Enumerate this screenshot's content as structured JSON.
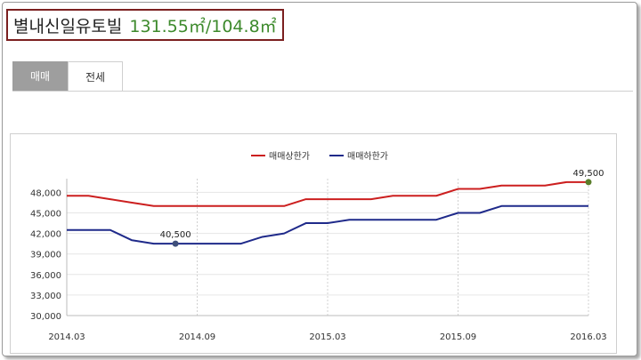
{
  "header": {
    "complex_name": "별내신일유토빌",
    "area": "131.55㎡/104.8㎡"
  },
  "tabs": [
    {
      "label": "매매",
      "active": true
    },
    {
      "label": "전세",
      "active": false
    }
  ],
  "colors": {
    "upper": "#cc1f1f",
    "lower": "#1f2a8a",
    "tab_active": "#9e9e9e",
    "title_border": "#7b1f1f",
    "area_text": "#3d8a2c"
  },
  "chart_data": {
    "type": "line",
    "title": "",
    "xlabel": "",
    "ylabel": "",
    "ylim": [
      30000,
      50000
    ],
    "yticks": [
      30000,
      33000,
      36000,
      39000,
      42000,
      45000,
      48000
    ],
    "ytick_labels": [
      "30,000",
      "33,000",
      "36,000",
      "39,000",
      "42,000",
      "45,000",
      "48,000"
    ],
    "xlim": [
      "2014-03",
      "2016-03"
    ],
    "xticks": [
      "2014-03",
      "2014-09",
      "2015-03",
      "2015-09",
      "2016-03"
    ],
    "xtick_labels": [
      "2014.03",
      "2014.09",
      "2015.03",
      "2015.09",
      "2016.03"
    ],
    "grid": true,
    "legend_position": "top-center",
    "x": [
      "2014-03",
      "2014-04",
      "2014-05",
      "2014-06",
      "2014-07",
      "2014-08",
      "2014-09",
      "2014-10",
      "2014-11",
      "2014-12",
      "2015-01",
      "2015-02",
      "2015-03",
      "2015-04",
      "2015-05",
      "2015-06",
      "2015-07",
      "2015-08",
      "2015-09",
      "2015-10",
      "2015-11",
      "2015-12",
      "2016-01",
      "2016-02",
      "2016-03"
    ],
    "series": [
      {
        "name": "매매상한가",
        "color": "#cc1f1f",
        "values": [
          47500,
          47500,
          47000,
          46500,
          46000,
          46000,
          46000,
          46000,
          46000,
          46000,
          46000,
          47000,
          47000,
          47000,
          47000,
          47500,
          47500,
          47500,
          48500,
          48500,
          49000,
          49000,
          49000,
          49500,
          49500
        ]
      },
      {
        "name": "매매하한가",
        "color": "#1f2a8a",
        "values": [
          42500,
          42500,
          42500,
          41000,
          40500,
          40500,
          40500,
          40500,
          40500,
          41500,
          42000,
          43500,
          43500,
          44000,
          44000,
          44000,
          44000,
          44000,
          45000,
          45000,
          46000,
          46000,
          46000,
          46000,
          46000
        ]
      }
    ],
    "annotations": [
      {
        "text": "49,500",
        "series": 0,
        "x": "2016-03",
        "y": 49500
      },
      {
        "text": "40,500",
        "series": 1,
        "x": "2014-08",
        "y": 40500
      }
    ]
  }
}
